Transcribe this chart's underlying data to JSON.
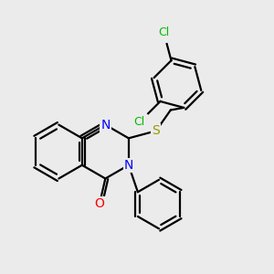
{
  "bg_color": "#ebebeb",
  "bond_color": "#000000",
  "bond_width": 1.6,
  "atom_colors": {
    "N": "#0000ff",
    "O": "#ff0000",
    "S": "#999900",
    "Cl": "#00bb00"
  },
  "font_size_atom": 10,
  "font_size_cl": 9
}
